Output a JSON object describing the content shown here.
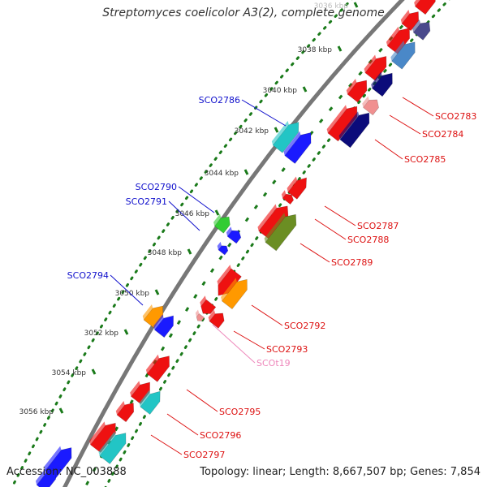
{
  "title": "Streptomyces coelicolor A3(2), complete genome",
  "footer": {
    "accession": "Accession: NC_003888",
    "summary": "Topology: linear; Length: 8,667,507 bp; Genes: 7,854"
  },
  "ticks": [
    "3036 kbp",
    "3038 kbp",
    "3040 kbp",
    "3042 kbp",
    "3044 kbp",
    "3046 kbp",
    "3048 kbp",
    "3050 kbp",
    "3052 kbp",
    "3054 kbp",
    "3056 kbp"
  ],
  "colors": {
    "red": "#ee1111",
    "blue": "#1a1aff",
    "cyan": "#22c5c5",
    "green": "#33cc33",
    "orange": "#ff9900",
    "olive": "#6b8e23",
    "navy": "#0b0b7a",
    "steel": "#4a88c8",
    "pink": "#f09090",
    "slate": "#4a4a8c",
    "label_blue": "#1010cc",
    "label_red": "#dd1111",
    "label_pink": "#ee88bb",
    "dot_green": "#1a7a1a"
  },
  "gene_labels": [
    "SCO2783",
    "SCO2784",
    "SCO2785",
    "SCO2786",
    "SCO2787",
    "SCO2788",
    "SCO2789",
    "SCO2790",
    "SCO2791",
    "SCO2792",
    "SCO2793",
    "SCOt19",
    "SCO2794",
    "SCO2795",
    "SCO2796",
    "SCO2797"
  ]
}
